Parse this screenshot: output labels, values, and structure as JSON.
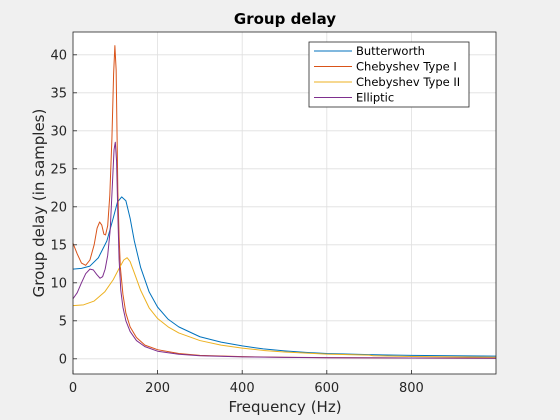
{
  "chart_data": {
    "type": "line",
    "title": "Group delay",
    "xlabel": "Frequency (Hz)",
    "ylabel": "Group delay (in samples)",
    "xlim": [
      0,
      1000
    ],
    "ylim": [
      -2,
      43
    ],
    "xticks": [
      "0",
      "200",
      "400",
      "600",
      "800"
    ],
    "yticks": [
      "0",
      "5",
      "10",
      "15",
      "20",
      "25",
      "30",
      "35",
      "40"
    ],
    "grid": true,
    "legend_position": "top-right",
    "series": [
      {
        "name": "Butterworth",
        "color": "#0072BD",
        "points": [
          [
            0,
            11.8
          ],
          [
            20,
            11.9
          ],
          [
            40,
            12.2
          ],
          [
            60,
            13.3
          ],
          [
            80,
            15.5
          ],
          [
            95,
            18.5
          ],
          [
            105,
            20.6
          ],
          [
            115,
            21.3
          ],
          [
            125,
            20.8
          ],
          [
            135,
            18.5
          ],
          [
            145,
            15.5
          ],
          [
            160,
            12.0
          ],
          [
            180,
            8.8
          ],
          [
            200,
            6.8
          ],
          [
            225,
            5.2
          ],
          [
            250,
            4.2
          ],
          [
            300,
            2.9
          ],
          [
            350,
            2.2
          ],
          [
            400,
            1.7
          ],
          [
            450,
            1.3
          ],
          [
            500,
            1.05
          ],
          [
            550,
            0.85
          ],
          [
            600,
            0.7
          ],
          [
            700,
            0.55
          ],
          [
            800,
            0.45
          ],
          [
            900,
            0.4
          ],
          [
            1000,
            0.35
          ]
        ]
      },
      {
        "name": "Chebyshev Type I",
        "color": "#D95319",
        "points": [
          [
            0,
            15.2
          ],
          [
            10,
            13.8
          ],
          [
            20,
            12.6
          ],
          [
            30,
            12.3
          ],
          [
            40,
            13.0
          ],
          [
            50,
            15.0
          ],
          [
            57,
            17.2
          ],
          [
            63,
            18.0
          ],
          [
            68,
            17.6
          ],
          [
            73,
            16.4
          ],
          [
            77,
            16.3
          ],
          [
            82,
            17.5
          ],
          [
            87,
            21.5
          ],
          [
            92,
            29.0
          ],
          [
            96,
            37.5
          ],
          [
            99,
            41.2
          ],
          [
            102,
            38.0
          ],
          [
            104,
            30.0
          ],
          [
            106,
            22.0
          ],
          [
            109,
            16.0
          ],
          [
            112,
            12.0
          ],
          [
            118,
            8.5
          ],
          [
            125,
            6.0
          ],
          [
            135,
            4.2
          ],
          [
            150,
            2.8
          ],
          [
            170,
            1.8
          ],
          [
            200,
            1.2
          ],
          [
            250,
            0.7
          ],
          [
            300,
            0.45
          ],
          [
            400,
            0.28
          ],
          [
            500,
            0.2
          ],
          [
            600,
            0.15
          ],
          [
            800,
            0.1
          ],
          [
            1000,
            0.08
          ]
        ]
      },
      {
        "name": "Chebyshev Type II",
        "color": "#EDB120",
        "points": [
          [
            0,
            7.0
          ],
          [
            25,
            7.1
          ],
          [
            50,
            7.6
          ],
          [
            75,
            8.8
          ],
          [
            95,
            10.4
          ],
          [
            110,
            12.0
          ],
          [
            120,
            13.0
          ],
          [
            128,
            13.3
          ],
          [
            135,
            12.8
          ],
          [
            145,
            11.3
          ],
          [
            160,
            9.0
          ],
          [
            180,
            6.7
          ],
          [
            200,
            5.3
          ],
          [
            225,
            4.2
          ],
          [
            250,
            3.4
          ],
          [
            300,
            2.4
          ],
          [
            350,
            1.8
          ],
          [
            400,
            1.4
          ],
          [
            450,
            1.1
          ],
          [
            500,
            0.9
          ],
          [
            600,
            0.62
          ],
          [
            700,
            0.48
          ],
          [
            710,
            0.4
          ],
          [
            800,
            0.3
          ],
          [
            900,
            0.25
          ],
          [
            1000,
            0.2
          ]
        ]
      },
      {
        "name": "Elliptic",
        "color": "#7E2F8E",
        "points": [
          [
            0,
            7.9
          ],
          [
            10,
            8.7
          ],
          [
            20,
            10.0
          ],
          [
            30,
            11.2
          ],
          [
            40,
            11.8
          ],
          [
            48,
            11.7
          ],
          [
            56,
            11.1
          ],
          [
            64,
            10.6
          ],
          [
            70,
            10.8
          ],
          [
            76,
            11.8
          ],
          [
            82,
            13.6
          ],
          [
            88,
            17.0
          ],
          [
            93,
            22.8
          ],
          [
            97,
            27.5
          ],
          [
            100,
            28.5
          ],
          [
            103,
            26.0
          ],
          [
            106,
            19.0
          ],
          [
            109,
            13.0
          ],
          [
            113,
            9.0
          ],
          [
            118,
            6.8
          ],
          [
            125,
            5.0
          ],
          [
            135,
            3.6
          ],
          [
            150,
            2.4
          ],
          [
            170,
            1.6
          ],
          [
            200,
            1.0
          ],
          [
            250,
            0.6
          ],
          [
            300,
            0.4
          ],
          [
            400,
            0.25
          ],
          [
            500,
            0.18
          ],
          [
            600,
            0.14
          ],
          [
            800,
            0.1
          ],
          [
            1000,
            0.08
          ]
        ]
      }
    ]
  }
}
